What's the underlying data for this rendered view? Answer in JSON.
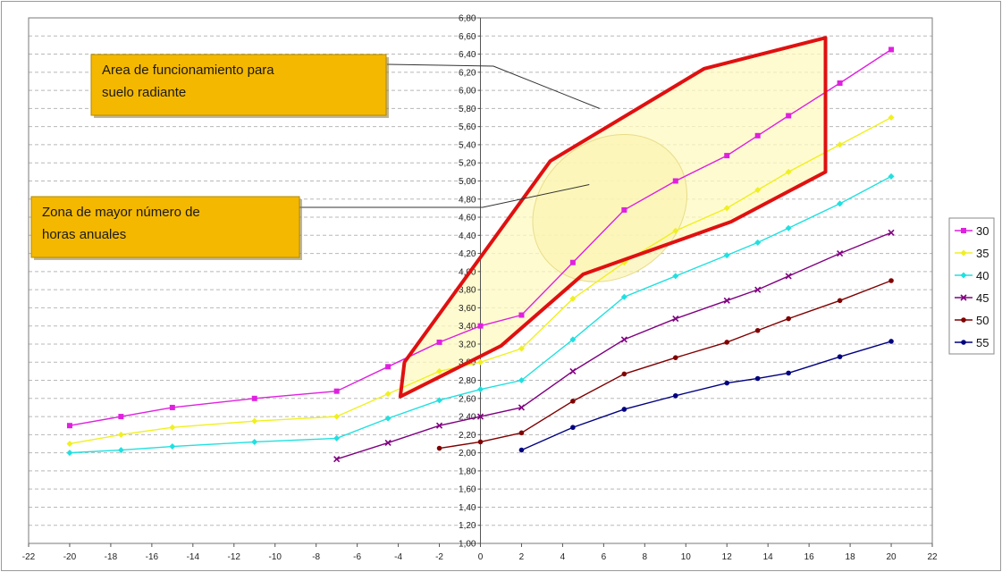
{
  "chart_data": {
    "type": "line",
    "xlim": [
      -22,
      22
    ],
    "ylim": [
      1.0,
      6.8
    ],
    "x_ticks": [
      "-22",
      "-20",
      "-18",
      "-16",
      "-14",
      "-12",
      "-10",
      "-8",
      "-6",
      "-4",
      "-2",
      "0",
      "2",
      "4",
      "6",
      "8",
      "10",
      "12",
      "14",
      "16",
      "18",
      "20",
      "22"
    ],
    "y_ticks": [
      "1,00",
      "1,20",
      "1,40",
      "1,60",
      "1,80",
      "2,00",
      "2,20",
      "2,40",
      "2,60",
      "2,80",
      "3,00",
      "3,20",
      "3,40",
      "3,60",
      "3,80",
      "4,00",
      "4,20",
      "4,40",
      "4,60",
      "4,80",
      "5,00",
      "5,20",
      "5,40",
      "5,60",
      "5,80",
      "6,00",
      "6,20",
      "6,40",
      "6,60",
      "6,80"
    ],
    "grid": true,
    "legend_position": "right",
    "series": [
      {
        "name": "30",
        "color": "#e020e0",
        "x": [
          -20,
          -17.5,
          -15,
          -11,
          -7,
          -4.5,
          -2,
          0,
          2,
          4.5,
          7,
          9.5,
          12,
          13.5,
          15,
          17.5,
          20
        ],
        "y": [
          2.3,
          2.4,
          2.5,
          2.6,
          2.68,
          2.95,
          3.22,
          3.4,
          3.52,
          4.1,
          4.68,
          5.0,
          5.28,
          5.5,
          5.72,
          6.08,
          6.45
        ]
      },
      {
        "name": "35",
        "color": "#f0f020",
        "x": [
          -20,
          -17.5,
          -15,
          -11,
          -7,
          -4.5,
          -2,
          0,
          2,
          4.5,
          7,
          9.5,
          12,
          13.5,
          15,
          17.5,
          20
        ],
        "y": [
          2.1,
          2.2,
          2.28,
          2.35,
          2.4,
          2.65,
          2.9,
          3.0,
          3.15,
          3.7,
          4.1,
          4.45,
          4.7,
          4.9,
          5.1,
          5.4,
          5.7
        ]
      },
      {
        "name": "40",
        "color": "#20e0e0",
        "x": [
          -20,
          -17.5,
          -15,
          -11,
          -7,
          -4.5,
          -2,
          0,
          2,
          4.5,
          7,
          9.5,
          12,
          13.5,
          15,
          17.5,
          20
        ],
        "y": [
          2.0,
          2.03,
          2.07,
          2.12,
          2.16,
          2.38,
          2.58,
          2.7,
          2.8,
          3.25,
          3.72,
          3.95,
          4.18,
          4.32,
          4.48,
          4.75,
          5.05
        ]
      },
      {
        "name": "45",
        "color": "#800080",
        "x": [
          -7,
          -4.5,
          -2,
          0,
          2,
          4.5,
          7,
          9.5,
          12,
          13.5,
          15,
          17.5,
          20
        ],
        "y": [
          1.93,
          2.11,
          2.3,
          2.4,
          2.5,
          2.9,
          3.25,
          3.48,
          3.68,
          3.8,
          3.95,
          4.2,
          4.43
        ]
      },
      {
        "name": "50",
        "color": "#800000",
        "x": [
          -2,
          0,
          2,
          4.5,
          7,
          9.5,
          12,
          13.5,
          15,
          17.5,
          20
        ],
        "y": [
          2.05,
          2.12,
          2.22,
          2.57,
          2.87,
          3.05,
          3.22,
          3.35,
          3.48,
          3.68,
          3.9
        ]
      },
      {
        "name": "55",
        "color": "#000080",
        "x": [
          2,
          4.5,
          7,
          9.5,
          12,
          13.5,
          15,
          17.5,
          20
        ],
        "y": [
          2.03,
          2.28,
          2.48,
          2.63,
          2.77,
          2.82,
          2.88,
          3.06,
          3.23
        ]
      }
    ],
    "operating_area": {
      "label": "Area de funcionamiento para suelo radiante",
      "label_lines": [
        "Area de funcionamiento para",
        "suelo radiante"
      ],
      "border_color": "#e01010",
      "fill_color": "#fff9c0",
      "polygon": [
        [
          -3.9,
          2.62
        ],
        [
          -3.7,
          3.0
        ],
        [
          3.4,
          5.22
        ],
        [
          10.9,
          6.24
        ],
        [
          16.8,
          6.58
        ],
        [
          16.8,
          5.1
        ],
        [
          12.2,
          4.55
        ],
        [
          5,
          3.97
        ],
        [
          1,
          3.18
        ],
        [
          -3.9,
          2.62
        ]
      ]
    },
    "high_hours_zone": {
      "label": "Zona de mayor número de horas anuales",
      "label_lines": [
        "Zona de mayor número de",
        "horas anuales"
      ],
      "center": [
        6.3,
        4.7
      ],
      "rx": 4.0,
      "ry": 0.75,
      "rotation_deg": -38
    }
  }
}
